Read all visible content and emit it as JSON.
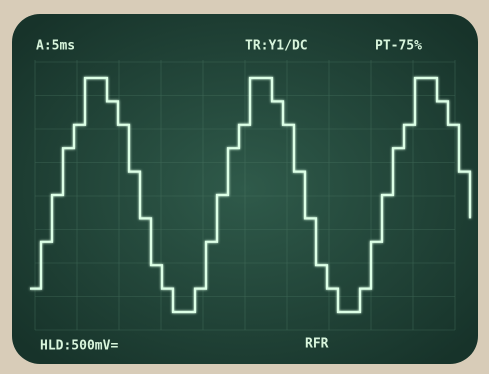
{
  "screen": {
    "top_left": "A:5ms",
    "top_center": "TR:Y1/DC",
    "top_right": "PT-75%",
    "bottom_left": "HLD:500mV=",
    "bottom_center": "RFR"
  }
}
